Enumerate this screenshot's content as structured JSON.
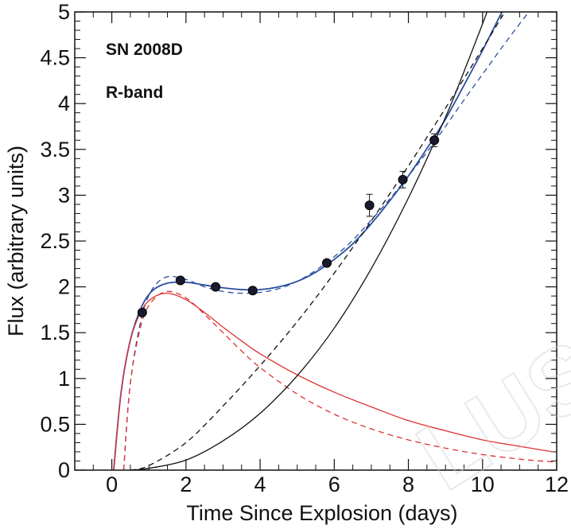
{
  "chart_data": {
    "type": "line",
    "title": "",
    "xlabel": "Time Since Explosion (days)",
    "ylabel": "Flux (arbitrary units)",
    "xlim": [
      -1.0,
      12.0
    ],
    "ylim": [
      0,
      5
    ],
    "x_ticks": [
      0,
      2,
      4,
      6,
      8,
      10,
      12
    ],
    "y_ticks": [
      0,
      0.5,
      1,
      1.5,
      2,
      2.5,
      3,
      3.5,
      4,
      4.5,
      5
    ],
    "x_tick_labels": [
      "0",
      "2",
      "4",
      "6",
      "8",
      "10",
      "12"
    ],
    "y_tick_labels": [
      "0",
      "0.5",
      "1",
      "1.5",
      "2",
      "2.5",
      "3",
      "3.5",
      "4",
      "4.5",
      "5"
    ],
    "annotations": [
      "SN 2008D",
      "R-band"
    ],
    "grid": false,
    "legend": "none",
    "series": [
      {
        "kind": "scatter",
        "color": "#111111",
        "points": [
          {
            "x": 0.82,
            "y": 1.72,
            "err": 0.03
          },
          {
            "x": 1.85,
            "y": 2.07,
            "err": 0.03
          },
          {
            "x": 2.8,
            "y": 2.0,
            "err": 0.03
          },
          {
            "x": 3.8,
            "y": 1.96,
            "err": 0.03
          },
          {
            "x": 5.8,
            "y": 2.26,
            "err": 0.03
          },
          {
            "x": 6.95,
            "y": 2.89,
            "err": 0.12
          },
          {
            "x": 7.85,
            "y": 3.17,
            "err": 0.09
          },
          {
            "x": 8.7,
            "y": 3.6,
            "err": 0.07
          }
        ]
      },
      {
        "kind": "line",
        "style": "solid",
        "color": "#2b4fa0",
        "points": [
          [
            0.05,
            0.0
          ],
          [
            0.25,
            0.85
          ],
          [
            0.5,
            1.42
          ],
          [
            0.8,
            1.78
          ],
          [
            1.1,
            1.96
          ],
          [
            1.5,
            2.04
          ],
          [
            2.0,
            2.05
          ],
          [
            2.5,
            2.02
          ],
          [
            3.0,
            1.99
          ],
          [
            3.5,
            1.97
          ],
          [
            4.0,
            1.97
          ],
          [
            4.5,
            2.0
          ],
          [
            5.0,
            2.06
          ],
          [
            5.5,
            2.16
          ],
          [
            6.0,
            2.3
          ],
          [
            6.5,
            2.47
          ],
          [
            7.0,
            2.69
          ],
          [
            7.5,
            2.94
          ],
          [
            8.0,
            3.21
          ],
          [
            8.5,
            3.51
          ],
          [
            9.0,
            3.83
          ],
          [
            9.5,
            4.2
          ],
          [
            10.0,
            4.58
          ],
          [
            10.5,
            4.98
          ],
          [
            10.55,
            5.0
          ]
        ]
      },
      {
        "kind": "line",
        "style": "dashed",
        "color": "#2b4fa0",
        "points": [
          [
            0.32,
            0.0
          ],
          [
            0.5,
            0.95
          ],
          [
            0.8,
            1.66
          ],
          [
            1.1,
            1.98
          ],
          [
            1.5,
            2.11
          ],
          [
            2.0,
            2.08
          ],
          [
            2.5,
            2.0
          ],
          [
            3.0,
            1.95
          ],
          [
            3.5,
            1.93
          ],
          [
            4.0,
            1.94
          ],
          [
            4.5,
            1.98
          ],
          [
            5.0,
            2.06
          ],
          [
            5.5,
            2.18
          ],
          [
            6.0,
            2.33
          ],
          [
            6.5,
            2.51
          ],
          [
            7.0,
            2.73
          ],
          [
            7.5,
            2.96
          ],
          [
            8.0,
            3.21
          ],
          [
            8.5,
            3.47
          ],
          [
            9.0,
            3.75
          ],
          [
            9.5,
            4.04
          ],
          [
            10.0,
            4.32
          ],
          [
            10.5,
            4.6
          ],
          [
            11.0,
            4.87
          ],
          [
            11.25,
            5.0
          ]
        ]
      },
      {
        "kind": "line",
        "style": "solid",
        "color": "#e03030",
        "points": [
          [
            0.05,
            0.0
          ],
          [
            0.25,
            0.85
          ],
          [
            0.5,
            1.42
          ],
          [
            0.8,
            1.74
          ],
          [
            1.1,
            1.88
          ],
          [
            1.5,
            1.93
          ],
          [
            2.0,
            1.86
          ],
          [
            2.5,
            1.72
          ],
          [
            3.0,
            1.56
          ],
          [
            3.5,
            1.41
          ],
          [
            4.0,
            1.27
          ],
          [
            5.0,
            1.04
          ],
          [
            6.0,
            0.85
          ],
          [
            7.0,
            0.69
          ],
          [
            8.0,
            0.54
          ],
          [
            9.0,
            0.43
          ],
          [
            10.0,
            0.33
          ],
          [
            11.0,
            0.26
          ],
          [
            11.9,
            0.2
          ]
        ]
      },
      {
        "kind": "line",
        "style": "dashed",
        "color": "#e03030",
        "points": [
          [
            0.32,
            0.0
          ],
          [
            0.5,
            0.95
          ],
          [
            0.8,
            1.6
          ],
          [
            1.1,
            1.85
          ],
          [
            1.5,
            1.95
          ],
          [
            2.0,
            1.88
          ],
          [
            2.5,
            1.7
          ],
          [
            3.0,
            1.5
          ],
          [
            3.5,
            1.3
          ],
          [
            4.0,
            1.12
          ],
          [
            5.0,
            0.83
          ],
          [
            6.0,
            0.61
          ],
          [
            7.0,
            0.45
          ],
          [
            8.0,
            0.33
          ],
          [
            9.0,
            0.24
          ],
          [
            10.0,
            0.17
          ],
          [
            11.0,
            0.12
          ],
          [
            11.9,
            0.09
          ]
        ]
      },
      {
        "kind": "line",
        "style": "solid",
        "color": "#111111",
        "points": [
          [
            0.5,
            0.0
          ],
          [
            1.0,
            0.02
          ],
          [
            2.0,
            0.11
          ],
          [
            3.0,
            0.32
          ],
          [
            4.0,
            0.62
          ],
          [
            5.0,
            1.03
          ],
          [
            6.0,
            1.55
          ],
          [
            7.0,
            2.2
          ],
          [
            8.0,
            2.97
          ],
          [
            9.0,
            3.85
          ],
          [
            9.5,
            4.35
          ],
          [
            10.0,
            4.87
          ],
          [
            10.12,
            5.0
          ]
        ]
      },
      {
        "kind": "line",
        "style": "dashed",
        "color": "#111111",
        "points": [
          [
            0.5,
            0.0
          ],
          [
            1.0,
            0.05
          ],
          [
            2.0,
            0.3
          ],
          [
            3.0,
            0.7
          ],
          [
            4.0,
            1.14
          ],
          [
            5.0,
            1.62
          ],
          [
            6.0,
            2.15
          ],
          [
            7.0,
            2.72
          ],
          [
            8.0,
            3.32
          ],
          [
            9.0,
            3.95
          ],
          [
            10.0,
            4.6
          ],
          [
            10.6,
            5.0
          ]
        ]
      }
    ]
  },
  "watermark": "LUS"
}
